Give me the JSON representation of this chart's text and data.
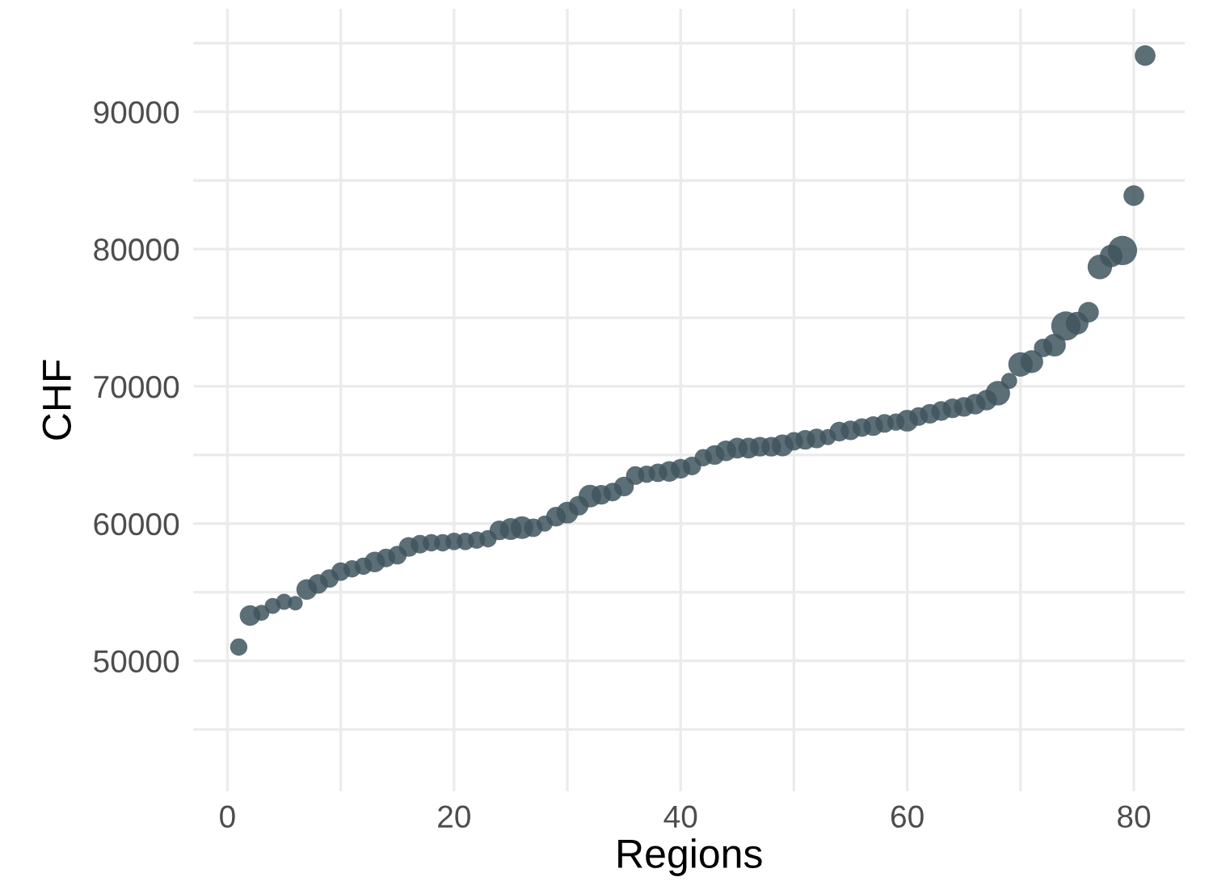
{
  "chart_data": {
    "type": "bubble",
    "xlabel": "Regions",
    "ylabel": "CHF",
    "x": [
      1,
      2,
      3,
      4,
      5,
      6,
      7,
      8,
      9,
      10,
      11,
      12,
      13,
      14,
      15,
      16,
      17,
      18,
      19,
      20,
      21,
      22,
      23,
      24,
      25,
      26,
      27,
      28,
      29,
      30,
      31,
      32,
      33,
      34,
      35,
      36,
      37,
      38,
      39,
      40,
      41,
      42,
      43,
      44,
      45,
      46,
      47,
      48,
      49,
      50,
      51,
      52,
      53,
      54,
      55,
      56,
      57,
      58,
      59,
      60,
      61,
      62,
      63,
      64,
      65,
      66,
      67,
      68,
      69,
      70,
      71,
      72,
      73,
      74,
      75,
      76,
      77,
      78,
      79,
      80,
      81
    ],
    "series": [
      {
        "color": "#3f555e",
        "values": [
          51000,
          53300,
          53500,
          54000,
          54300,
          54200,
          55200,
          55600,
          56000,
          56500,
          56700,
          56900,
          57200,
          57500,
          57700,
          58300,
          58500,
          58600,
          58600,
          58700,
          58700,
          58800,
          58900,
          59500,
          59600,
          59700,
          59700,
          60000,
          60500,
          60800,
          61300,
          62000,
          62100,
          62300,
          62700,
          63500,
          63600,
          63700,
          63800,
          64000,
          64200,
          64800,
          65000,
          65300,
          65500,
          65500,
          65600,
          65600,
          65700,
          66000,
          66100,
          66200,
          66300,
          66700,
          66800,
          67000,
          67100,
          67300,
          67400,
          67500,
          67800,
          68000,
          68200,
          68400,
          68500,
          68700,
          69000,
          69500,
          70400,
          71600,
          71800,
          72800,
          73000,
          74400,
          74600,
          75400,
          78700,
          79500,
          79900,
          83900,
          94100
        ],
        "sizes": [
          0.35,
          0.5,
          0.3,
          0.3,
          0.3,
          0.25,
          0.5,
          0.45,
          0.4,
          0.4,
          0.35,
          0.35,
          0.5,
          0.4,
          0.4,
          0.45,
          0.4,
          0.35,
          0.35,
          0.35,
          0.35,
          0.35,
          0.35,
          0.45,
          0.55,
          0.6,
          0.4,
          0.3,
          0.45,
          0.55,
          0.45,
          0.6,
          0.45,
          0.4,
          0.45,
          0.4,
          0.35,
          0.4,
          0.5,
          0.45,
          0.4,
          0.35,
          0.45,
          0.5,
          0.5,
          0.5,
          0.45,
          0.45,
          0.55,
          0.4,
          0.45,
          0.45,
          0.3,
          0.45,
          0.45,
          0.4,
          0.45,
          0.4,
          0.35,
          0.55,
          0.4,
          0.45,
          0.45,
          0.45,
          0.45,
          0.5,
          0.5,
          0.7,
          0.3,
          0.7,
          0.6,
          0.4,
          0.6,
          1.0,
          0.6,
          0.5,
          0.7,
          0.6,
          1.0,
          0.5,
          0.5
        ]
      }
    ],
    "xlim": [
      -3,
      84.5
    ],
    "ylim": [
      40500,
      97500
    ],
    "xticks": [
      0,
      {
        "value": 10,
        "label": null
      },
      20,
      {
        "value": 30,
        "label": null
      },
      40,
      {
        "value": 50,
        "label": null
      },
      60,
      {
        "value": 70,
        "label": null
      },
      80
    ],
    "yticks": [
      {
        "value": 45000,
        "label": null
      },
      50000,
      {
        "value": 55000,
        "label": null
      },
      60000,
      {
        "value": 65000,
        "label": null
      },
      70000,
      {
        "value": 75000,
        "label": null
      },
      80000,
      {
        "value": 85000,
        "label": null
      },
      90000,
      {
        "value": 95000,
        "label": null
      }
    ],
    "grid": true,
    "marker": "circle"
  }
}
